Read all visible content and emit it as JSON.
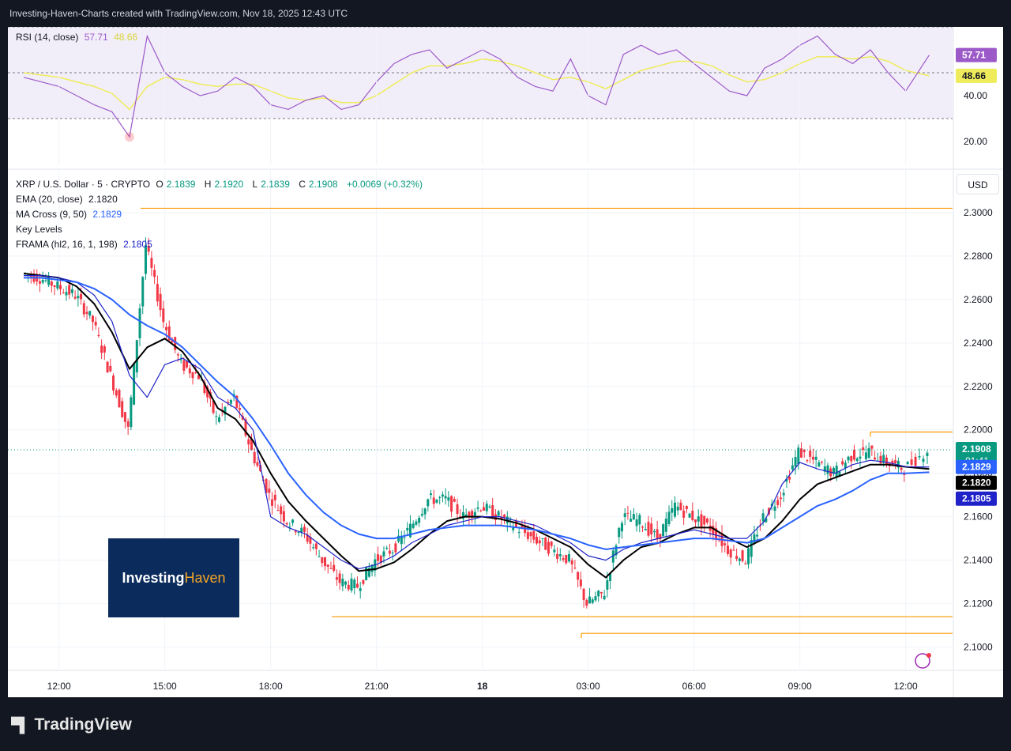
{
  "header": {
    "title": "Investing-Haven-Charts created with TradingView.com, Nov 18, 2025 12:43 UTC"
  },
  "rsi_legend": {
    "label": "RSI (14, close)",
    "value1": "57.71",
    "value2": "48.66"
  },
  "price_legend": {
    "symbol": "XRP / U.S. Dollar · 5 · CRYPTO",
    "o_label": "O",
    "o": "2.1839",
    "h_label": "H",
    "h": "2.1920",
    "l_label": "L",
    "l": "2.1839",
    "c_label": "C",
    "c": "2.1908",
    "change": "+0.0069 (+0.32%)",
    "ema_label": "EMA (20, close)",
    "ema_value": "2.1820",
    "ma_label": "MA Cross (9, 50)",
    "ma_value": "2.1829",
    "key_levels": "Key Levels",
    "frama_label": "FRAMA (hl2, 16, 1, 198)",
    "frama_value": "2.1805"
  },
  "currency_button": "USD",
  "logo": {
    "part1": "Investing",
    "part2": "Haven"
  },
  "footer": {
    "brand": "TradingView"
  },
  "colors": {
    "up": "#089981",
    "down": "#f23645",
    "ema": "#000000",
    "ma_fast": "#1e22c8",
    "frama": "#2962ff",
    "key_level": "#ff9800",
    "rsi": "#9c5ac9",
    "rsi_ma": "#eeec5b"
  },
  "chart_data": [
    {
      "type": "line",
      "name": "RSI",
      "title": "RSI (14, close)",
      "ylim": [
        10,
        70
      ],
      "bands": [
        30,
        70
      ],
      "y_ticks": [
        "20.00",
        "40.00"
      ],
      "last_labels": [
        "57.71",
        "48.66"
      ],
      "x": [
        "11:00",
        "11:30",
        "12:00",
        "12:30",
        "13:00",
        "13:30",
        "14:00",
        "14:30",
        "15:00",
        "15:30",
        "16:00",
        "16:30",
        "17:00",
        "17:30",
        "18:00",
        "18:30",
        "19:00",
        "19:30",
        "20:00",
        "20:30",
        "21:00",
        "21:30",
        "22:00",
        "22:30",
        "23:00",
        "23:30",
        "00:00",
        "00:30",
        "01:00",
        "01:30",
        "02:00",
        "02:30",
        "03:00",
        "03:30",
        "04:00",
        "04:30",
        "05:00",
        "05:30",
        "06:00",
        "06:30",
        "07:00",
        "07:30",
        "08:00",
        "08:30",
        "09:00",
        "09:30",
        "10:00",
        "10:30",
        "11:00",
        "11:30",
        "12:00",
        "12:40"
      ],
      "series": [
        {
          "values": [
            48,
            46,
            44,
            40,
            36,
            33,
            22,
            66,
            50,
            44,
            40,
            42,
            48,
            44,
            36,
            34,
            38,
            40,
            34,
            36,
            46,
            54,
            58,
            60,
            52,
            56,
            60,
            56,
            48,
            44,
            42,
            56,
            40,
            36,
            58,
            62,
            58,
            60,
            54,
            48,
            42,
            40,
            52,
            56,
            62,
            66,
            58,
            54,
            60,
            50,
            42,
            57.71
          ]
        },
        {
          "values": [
            50,
            49,
            48,
            46,
            44,
            41,
            34,
            44,
            48,
            47,
            45,
            44,
            45,
            45,
            42,
            39,
            38,
            39,
            37,
            37,
            40,
            45,
            50,
            53,
            53,
            54,
            56,
            55,
            53,
            50,
            47,
            48,
            46,
            43,
            47,
            51,
            53,
            55,
            55,
            53,
            49,
            46,
            47,
            50,
            54,
            57,
            57,
            56,
            57,
            55,
            51,
            48.66
          ]
        }
      ]
    },
    {
      "type": "candlestick",
      "name": "XRP / U.S. Dollar",
      "ylim": [
        2.09,
        2.32
      ],
      "y_ticks": [
        "2.1000",
        "2.1200",
        "2.1400",
        "2.1600",
        "2.1800",
        "2.2000",
        "2.2200",
        "2.2400",
        "2.2600",
        "2.2800",
        "2.3000"
      ],
      "x_ticks": [
        "12:00",
        "15:00",
        "18:00",
        "21:00",
        "18",
        "03:00",
        "06:00",
        "09:00",
        "12:00"
      ],
      "price_labels": [
        "2.1908",
        "01:41",
        "2.1829",
        "2.1820",
        "2.1805"
      ],
      "x": [
        "11:00",
        "11:30",
        "12:00",
        "12:30",
        "13:00",
        "13:30",
        "14:00",
        "14:30",
        "15:00",
        "15:30",
        "16:00",
        "16:30",
        "17:00",
        "17:30",
        "18:00",
        "18:30",
        "19:00",
        "19:30",
        "20:00",
        "20:30",
        "21:00",
        "21:30",
        "22:00",
        "22:30",
        "23:00",
        "23:30",
        "00:00",
        "00:30",
        "01:00",
        "01:30",
        "02:00",
        "02:30",
        "03:00",
        "03:30",
        "04:00",
        "04:30",
        "05:00",
        "05:30",
        "06:00",
        "06:30",
        "07:00",
        "07:30",
        "08:00",
        "08:30",
        "09:00",
        "09:30",
        "10:00",
        "10:30",
        "11:00",
        "11:30",
        "12:00",
        "12:40"
      ],
      "close": [
        2.272,
        2.27,
        2.266,
        2.262,
        2.25,
        2.225,
        2.2,
        2.285,
        2.25,
        2.23,
        2.225,
        2.205,
        2.215,
        2.19,
        2.17,
        2.158,
        2.152,
        2.14,
        2.13,
        2.128,
        2.14,
        2.145,
        2.155,
        2.168,
        2.168,
        2.16,
        2.165,
        2.16,
        2.155,
        2.15,
        2.145,
        2.14,
        2.12,
        2.125,
        2.16,
        2.158,
        2.15,
        2.165,
        2.16,
        2.155,
        2.145,
        2.14,
        2.16,
        2.17,
        2.19,
        2.185,
        2.18,
        2.188,
        2.19,
        2.185,
        2.182,
        2.1908
      ],
      "series": [
        {
          "name": "EMA (20, close)",
          "values": [
            2.272,
            2.271,
            2.27,
            2.266,
            2.258,
            2.245,
            2.228,
            2.238,
            2.242,
            2.236,
            2.225,
            2.21,
            2.205,
            2.195,
            2.18,
            2.167,
            2.158,
            2.15,
            2.142,
            2.135,
            2.136,
            2.139,
            2.145,
            2.152,
            2.158,
            2.16,
            2.16,
            2.159,
            2.157,
            2.154,
            2.15,
            2.146,
            2.138,
            2.132,
            2.14,
            2.146,
            2.148,
            2.152,
            2.155,
            2.155,
            2.15,
            2.146,
            2.15,
            2.158,
            2.168,
            2.175,
            2.178,
            2.181,
            2.184,
            2.184,
            2.183,
            2.182
          ]
        },
        {
          "name": "MA Cross (9, 50)",
          "values": [
            2.271,
            2.271,
            2.27,
            2.268,
            2.262,
            2.25,
            2.225,
            2.215,
            2.23,
            2.233,
            2.228,
            2.215,
            2.21,
            2.2,
            2.16,
            2.155,
            2.152,
            2.146,
            2.14,
            2.136,
            2.138,
            2.142,
            2.148,
            2.152,
            2.156,
            2.158,
            2.16,
            2.16,
            2.158,
            2.156,
            2.152,
            2.148,
            2.142,
            2.14,
            2.145,
            2.148,
            2.15,
            2.152,
            2.154,
            2.152,
            2.15,
            2.15,
            2.158,
            2.175,
            2.185,
            2.182,
            2.18,
            2.184,
            2.186,
            2.185,
            2.183,
            2.1829
          ]
        },
        {
          "name": "FRAMA (hl2, 16, 1, 198)",
          "values": [
            2.27,
            2.27,
            2.269,
            2.268,
            2.265,
            2.26,
            2.253,
            2.248,
            2.244,
            2.238,
            2.23,
            2.222,
            2.215,
            2.205,
            2.193,
            2.18,
            2.17,
            2.162,
            2.156,
            2.152,
            2.15,
            2.15,
            2.152,
            2.154,
            2.155,
            2.156,
            2.156,
            2.156,
            2.155,
            2.154,
            2.152,
            2.15,
            2.147,
            2.145,
            2.146,
            2.147,
            2.148,
            2.149,
            2.15,
            2.15,
            2.149,
            2.148,
            2.15,
            2.155,
            2.16,
            2.165,
            2.168,
            2.172,
            2.177,
            2.18,
            2.18,
            2.1805
          ]
        }
      ],
      "key_levels": [
        2.302,
        2.199,
        2.114,
        2.1063
      ]
    }
  ]
}
